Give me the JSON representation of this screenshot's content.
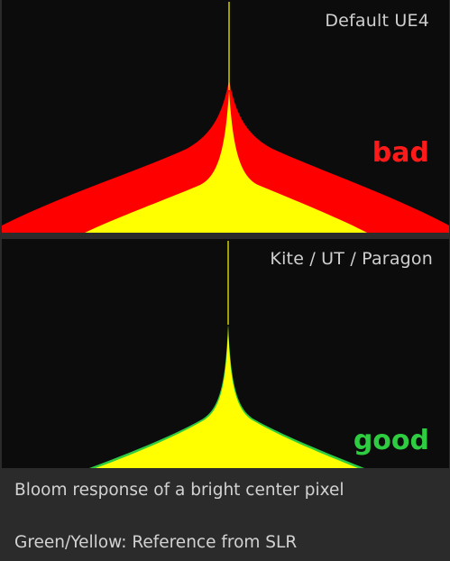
{
  "colors": {
    "background": "#0c0c0c",
    "bad_curve": "#ff0000",
    "reference_curve": "#ffff00",
    "reference_edge": "#2ecc40",
    "bad_label": "#ff1a1a",
    "good_label": "#2ecc40"
  },
  "panels": [
    {
      "title": "Default UE4",
      "verdict": "bad"
    },
    {
      "title": "Kite / UT / Paragon",
      "verdict": "good"
    }
  ],
  "captions": {
    "line1": "Bloom response of a bright center pixel",
    "line2": "Green/Yellow: Reference from SLR"
  }
}
